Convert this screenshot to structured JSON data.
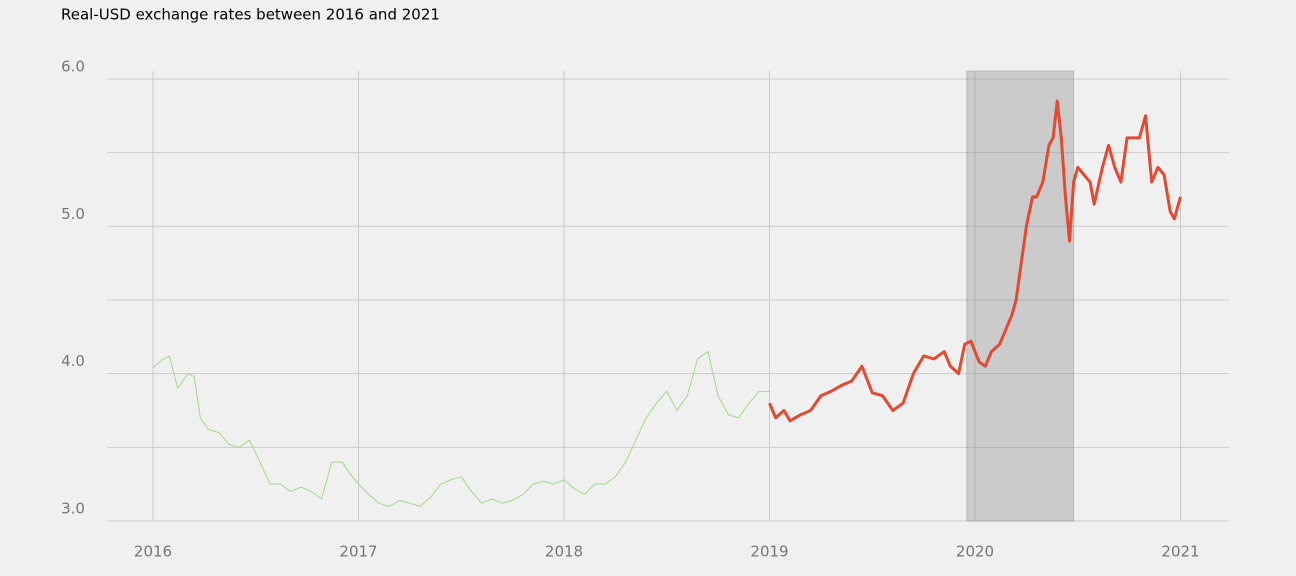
{
  "chart_data": {
    "type": "line",
    "title": "Real-USD exchange rates between 2016 and 2021",
    "xlim": [
      2015.776,
      2021.236
    ],
    "xticks": [
      2016,
      2017,
      2018,
      2019,
      2020,
      2021
    ],
    "ylim": [
      3.0,
      6.054
    ],
    "yticks": [
      {
        "value": 3,
        "label": "3.0"
      },
      {
        "value": 4,
        "label": "4.0"
      },
      {
        "value": 5,
        "label": "5.0"
      },
      {
        "value": 6,
        "label": "6.0"
      }
    ],
    "minor_yticks": [
      3.5,
      4.5,
      5.5
    ],
    "grid": true,
    "shaded_region": [
      2019.96,
      2020.48
    ],
    "series": [
      {
        "color": "#a3d98a",
        "width": 1,
        "x": [
          2016.0,
          2016.05,
          2016.08,
          2016.12,
          2016.17,
          2016.2,
          2016.23,
          2016.27,
          2016.32,
          2016.37,
          2016.42,
          2016.47,
          2016.52,
          2016.57,
          2016.62,
          2016.67,
          2016.72,
          2016.77,
          2016.82,
          2016.87,
          2016.92,
          2016.97,
          2017.0,
          2017.05,
          2017.1,
          2017.15,
          2017.2,
          2017.25,
          2017.3,
          2017.35,
          2017.4,
          2017.45,
          2017.5,
          2017.55,
          2017.6,
          2017.65,
          2017.7,
          2017.75,
          2017.8,
          2017.85,
          2017.9,
          2017.95,
          2018.0,
          2018.05,
          2018.1,
          2018.15,
          2018.2,
          2018.25,
          2018.3,
          2018.35,
          2018.4,
          2018.45,
          2018.5,
          2018.55,
          2018.6,
          2018.65,
          2018.7,
          2018.75,
          2018.8,
          2018.85,
          2018.9,
          2018.95,
          2019.0
        ],
        "values": [
          4.04,
          4.1,
          4.12,
          3.9,
          4.0,
          3.98,
          3.7,
          3.62,
          3.6,
          3.52,
          3.5,
          3.55,
          3.4,
          3.25,
          3.25,
          3.2,
          3.23,
          3.2,
          3.15,
          3.4,
          3.4,
          3.3,
          3.25,
          3.18,
          3.12,
          3.1,
          3.14,
          3.12,
          3.1,
          3.16,
          3.25,
          3.28,
          3.3,
          3.2,
          3.12,
          3.15,
          3.12,
          3.14,
          3.18,
          3.25,
          3.27,
          3.25,
          3.28,
          3.22,
          3.18,
          3.25,
          3.25,
          3.3,
          3.4,
          3.55,
          3.7,
          3.8,
          3.88,
          3.75,
          3.85,
          4.1,
          4.15,
          3.85,
          3.72,
          3.7,
          3.8,
          3.88,
          3.88
        ]
      },
      {
        "color": "#e24a33",
        "width": 3,
        "x": [
          2019.0,
          2019.03,
          2019.07,
          2019.1,
          2019.15,
          2019.2,
          2019.25,
          2019.3,
          2019.35,
          2019.4,
          2019.45,
          2019.5,
          2019.55,
          2019.6,
          2019.65,
          2019.7,
          2019.75,
          2019.8,
          2019.85,
          2019.88,
          2019.92,
          2019.95,
          2019.98,
          2020.02,
          2020.05,
          2020.08,
          2020.12,
          2020.15,
          2020.18,
          2020.2,
          2020.22,
          2020.25,
          2020.28,
          2020.3,
          2020.33,
          2020.36,
          2020.38,
          2020.4,
          2020.42,
          2020.44,
          2020.46,
          2020.48,
          2020.5,
          2020.53,
          2020.56,
          2020.58,
          2020.62,
          2020.65,
          2020.68,
          2020.71,
          2020.74,
          2020.77,
          2020.8,
          2020.83,
          2020.86,
          2020.89,
          2020.92,
          2020.95,
          2020.97,
          2021.0
        ],
        "values": [
          3.8,
          3.7,
          3.75,
          3.68,
          3.72,
          3.75,
          3.85,
          3.88,
          3.92,
          3.95,
          4.05,
          3.87,
          3.85,
          3.75,
          3.8,
          4.0,
          4.12,
          4.1,
          4.15,
          4.05,
          4.0,
          4.2,
          4.22,
          4.08,
          4.05,
          4.15,
          4.2,
          4.3,
          4.4,
          4.5,
          4.7,
          5.0,
          5.2,
          5.2,
          5.3,
          5.55,
          5.6,
          5.85,
          5.6,
          5.2,
          4.9,
          5.3,
          5.4,
          5.35,
          5.3,
          5.15,
          5.4,
          5.55,
          5.4,
          5.3,
          5.6,
          5.6,
          5.6,
          5.75,
          5.3,
          5.4,
          5.35,
          5.1,
          5.05,
          5.2
        ]
      }
    ]
  }
}
